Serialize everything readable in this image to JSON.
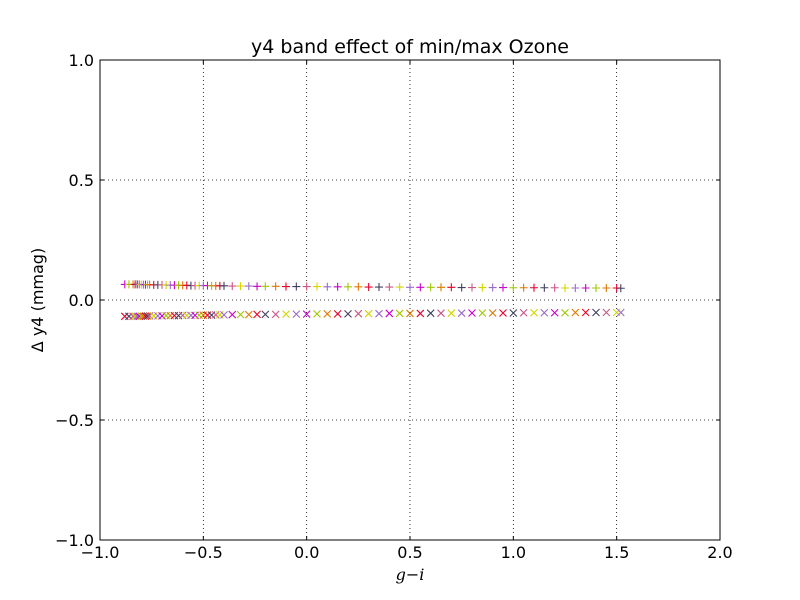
{
  "chart_data": {
    "type": "scatter",
    "title": "y4 band effect of min/max Ozone",
    "xlabel": "g−i",
    "ylabel": "Δ y4 (mmag)",
    "xlim": [
      -1.0,
      2.0
    ],
    "ylim": [
      -1.0,
      1.0
    ],
    "xticks": [
      -1.0,
      -0.5,
      0.0,
      0.5,
      1.0,
      1.5,
      2.0
    ],
    "xtick_labels": [
      "−1.0",
      "−0.5",
      "0.0",
      "0.5",
      "1.0",
      "1.5",
      "2.0"
    ],
    "yticks": [
      -1.0,
      -0.5,
      0.0,
      0.5,
      1.0
    ],
    "ytick_labels": [
      "−1.0",
      "−0.5",
      "0.0",
      "0.5",
      "1.0"
    ],
    "grid": true,
    "marker_colors": [
      "#cc00cc",
      "#e8002a",
      "#d4d400",
      "#a0c800",
      "#404060",
      "#9a6bcc",
      "#e07800",
      "#cc5588"
    ],
    "series": [
      {
        "marker": "plus",
        "x": [
          -0.88,
          -0.86,
          -0.84,
          -0.83,
          -0.82,
          -0.81,
          -0.8,
          -0.79,
          -0.78,
          -0.77,
          -0.76,
          -0.74,
          -0.72,
          -0.7,
          -0.68,
          -0.66,
          -0.64,
          -0.62,
          -0.6,
          -0.58,
          -0.56,
          -0.54,
          -0.52,
          -0.5,
          -0.48,
          -0.46,
          -0.44,
          -0.42,
          -0.4,
          -0.36,
          -0.32,
          -0.28,
          -0.24,
          -0.2,
          -0.15,
          -0.1,
          -0.05,
          0.0,
          0.05,
          0.1,
          0.15,
          0.2,
          0.25,
          0.3,
          0.35,
          0.4,
          0.45,
          0.5,
          0.55,
          0.6,
          0.65,
          0.7,
          0.75,
          0.8,
          0.85,
          0.9,
          0.95,
          1.0,
          1.05,
          1.1,
          1.15,
          1.2,
          1.25,
          1.3,
          1.35,
          1.4,
          1.45,
          1.5,
          1.52
        ],
        "y": [
          0.065,
          0.065,
          0.065,
          0.065,
          0.065,
          0.065,
          0.064,
          0.064,
          0.064,
          0.064,
          0.064,
          0.063,
          0.063,
          0.063,
          0.062,
          0.062,
          0.062,
          0.061,
          0.061,
          0.061,
          0.06,
          0.06,
          0.06,
          0.06,
          0.06,
          0.059,
          0.059,
          0.059,
          0.059,
          0.058,
          0.058,
          0.058,
          0.057,
          0.057,
          0.057,
          0.056,
          0.056,
          0.056,
          0.056,
          0.055,
          0.055,
          0.055,
          0.055,
          0.054,
          0.054,
          0.054,
          0.054,
          0.053,
          0.053,
          0.053,
          0.053,
          0.053,
          0.052,
          0.052,
          0.052,
          0.052,
          0.052,
          0.051,
          0.051,
          0.051,
          0.051,
          0.051,
          0.05,
          0.05,
          0.05,
          0.05,
          0.05,
          0.05,
          0.049
        ]
      },
      {
        "marker": "x",
        "x": [
          -0.88,
          -0.86,
          -0.84,
          -0.83,
          -0.82,
          -0.81,
          -0.8,
          -0.79,
          -0.78,
          -0.77,
          -0.76,
          -0.74,
          -0.72,
          -0.7,
          -0.68,
          -0.66,
          -0.64,
          -0.62,
          -0.6,
          -0.58,
          -0.56,
          -0.54,
          -0.52,
          -0.5,
          -0.48,
          -0.46,
          -0.44,
          -0.42,
          -0.4,
          -0.36,
          -0.32,
          -0.28,
          -0.24,
          -0.2,
          -0.15,
          -0.1,
          -0.05,
          0.0,
          0.05,
          0.1,
          0.15,
          0.2,
          0.25,
          0.3,
          0.35,
          0.4,
          0.45,
          0.5,
          0.55,
          0.6,
          0.65,
          0.7,
          0.75,
          0.8,
          0.85,
          0.9,
          0.95,
          1.0,
          1.05,
          1.1,
          1.15,
          1.2,
          1.25,
          1.3,
          1.35,
          1.4,
          1.45,
          1.5,
          1.52
        ],
        "y": [
          -0.068,
          -0.068,
          -0.068,
          -0.068,
          -0.068,
          -0.068,
          -0.067,
          -0.067,
          -0.067,
          -0.067,
          -0.066,
          -0.066,
          -0.066,
          -0.066,
          -0.065,
          -0.065,
          -0.065,
          -0.065,
          -0.064,
          -0.064,
          -0.064,
          -0.064,
          -0.063,
          -0.063,
          -0.063,
          -0.063,
          -0.062,
          -0.062,
          -0.062,
          -0.061,
          -0.061,
          -0.061,
          -0.06,
          -0.06,
          -0.06,
          -0.059,
          -0.059,
          -0.059,
          -0.058,
          -0.058,
          -0.058,
          -0.058,
          -0.057,
          -0.057,
          -0.057,
          -0.056,
          -0.056,
          -0.056,
          -0.056,
          -0.055,
          -0.055,
          -0.055,
          -0.055,
          -0.054,
          -0.054,
          -0.054,
          -0.054,
          -0.054,
          -0.053,
          -0.053,
          -0.053,
          -0.053,
          -0.053,
          -0.052,
          -0.052,
          -0.052,
          -0.052,
          -0.052,
          -0.052
        ]
      }
    ]
  }
}
